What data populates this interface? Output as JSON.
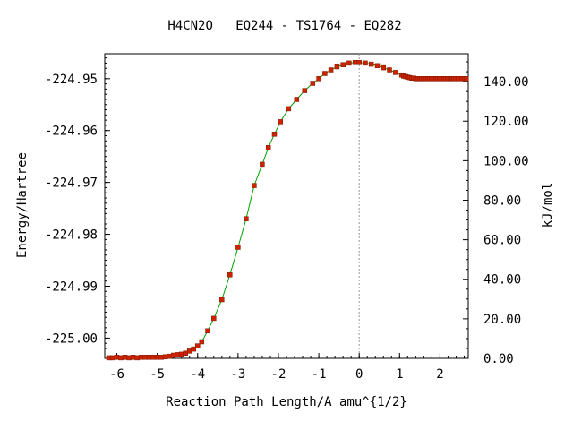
{
  "chart_data": {
    "type": "line",
    "title": "H4CN2O   EQ244 - TS1764 - EQ282",
    "xlabel": "Reaction Path Length/A amu^{1/2}",
    "ylabel": "Energy/Hartree",
    "y2label": "kJ/mol",
    "xlim": [
      -6.3,
      2.7
    ],
    "ylim": [
      -225.0039,
      -224.9452
    ],
    "y2lim": [
      0.0,
      154.1
    ],
    "x_ticks": [
      -6,
      -5,
      -4,
      -3,
      -2,
      -1,
      0,
      1,
      2
    ],
    "x_tick_labels": [
      "-6",
      "-5",
      "-4",
      "-3",
      "-2",
      "-1",
      "0",
      "1",
      "2"
    ],
    "y_ticks": [
      -224.95,
      -224.96,
      -224.97,
      -224.98,
      -224.99,
      -225.0
    ],
    "y_tick_labels": [
      "-224.95",
      "-224.96",
      "-224.97",
      "-224.98",
      "-224.99",
      "-225.00"
    ],
    "y2_ticks": [
      140,
      120,
      100,
      80,
      60,
      40,
      20,
      0
    ],
    "y2_tick_labels": [
      "140.00",
      "120.00",
      "100.00",
      "80.00",
      "60.00",
      "40.00",
      "20.00",
      "0.00"
    ],
    "ts_x": 0,
    "line_color": "#00a000",
    "marker_color": "#cc2200",
    "series": [
      {
        "x": [
          -6.2,
          -6.1,
          -6.0,
          -5.9,
          -5.8,
          -5.7,
          -5.6,
          -5.5,
          -5.4,
          -5.3,
          -5.2,
          -5.1,
          -5.0,
          -4.9,
          -4.8,
          -4.7,
          -4.6,
          -4.5,
          -4.4,
          -4.3,
          -4.2,
          -4.1,
          -4.0,
          -3.9,
          -3.75,
          -3.6,
          -3.4,
          -3.2,
          -3.0,
          -2.8,
          -2.6,
          -2.4,
          -2.25,
          -2.1,
          -1.95,
          -1.75,
          -1.55,
          -1.35,
          -1.15,
          -1.0,
          -0.85,
          -0.7,
          -0.55,
          -0.4,
          -0.25,
          -0.1,
          0.0,
          0.15,
          0.3,
          0.45,
          0.6,
          0.75,
          0.9,
          1.05,
          1.1,
          1.15,
          1.2,
          1.25,
          1.3,
          1.35,
          1.4,
          1.45,
          1.5,
          1.55,
          1.6,
          1.65,
          1.7,
          1.75,
          1.8,
          1.85,
          1.9,
          1.95,
          2.0,
          2.05,
          2.1,
          2.15,
          2.2,
          2.25,
          2.3,
          2.35,
          2.4,
          2.45,
          2.5,
          2.55,
          2.6,
          2.65
        ],
        "y": [
          -225.0038,
          -225.0038,
          -225.0037,
          -225.0038,
          -225.0037,
          -225.0038,
          -225.0037,
          -225.0038,
          -225.0037,
          -225.0037,
          -225.0037,
          -225.0037,
          -225.0037,
          -225.0037,
          -225.0036,
          -225.0035,
          -225.0033,
          -225.0032,
          -225.0031,
          -225.0029,
          -225.0025,
          -225.0021,
          -225.0015,
          -225.0007,
          -224.9986,
          -224.9962,
          -224.9926,
          -224.9878,
          -224.9825,
          -224.977,
          -224.9706,
          -224.9665,
          -224.9633,
          -224.9607,
          -224.9583,
          -224.9558,
          -224.954,
          -224.9523,
          -224.9509,
          -224.95,
          -224.949,
          -224.9483,
          -224.9477,
          -224.9473,
          -224.947,
          -224.9469,
          -224.9469,
          -224.947,
          -224.9472,
          -224.9475,
          -224.9479,
          -224.9483,
          -224.9488,
          -224.9493,
          -224.9495,
          -224.9496,
          -224.9497,
          -224.9498,
          -224.9499,
          -224.9499,
          -224.95,
          -224.95,
          -224.95,
          -224.95,
          -224.95,
          -224.95,
          -224.95,
          -224.95,
          -224.95,
          -224.95,
          -224.95,
          -224.95,
          -224.95,
          -224.95,
          -224.95,
          -224.95,
          -224.95,
          -224.95,
          -224.95,
          -224.95,
          -224.95,
          -224.95,
          -224.95,
          -224.95,
          -224.95,
          -224.95
        ]
      }
    ]
  }
}
